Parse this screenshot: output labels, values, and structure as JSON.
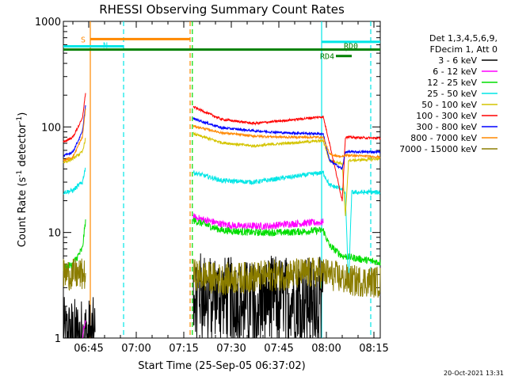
{
  "chart_data": {
    "type": "line",
    "title": "RHESSI Observing Summary Count Rates",
    "xlabel": "Start Time (25-Sep-05 06:37:02)",
    "ylabel": "Count Rate (s⁻¹ detector⁻¹)",
    "ylabel_main": "Count Rate (s",
    "ylabel_sup1": "-1",
    "ylabel_mid": " detector",
    "ylabel_sup2": "-1",
    "ylabel_end": ")",
    "yscale": "log",
    "ylim": [
      1,
      1000
    ],
    "xlim_minutes": [
      0,
      100
    ],
    "yticks": [
      {
        "value": 1,
        "label": "1"
      },
      {
        "value": 10,
        "label": "10"
      },
      {
        "value": 100,
        "label": "100"
      },
      {
        "value": 1000,
        "label": "1000"
      }
    ],
    "xticks": [
      {
        "minute": 8,
        "label": "06:45"
      },
      {
        "minute": 23,
        "label": "07:00"
      },
      {
        "minute": 38,
        "label": "07:15"
      },
      {
        "minute": 53,
        "label": "07:30"
      },
      {
        "minute": 68,
        "label": "07:45"
      },
      {
        "minute": 83,
        "label": "08:00"
      },
      {
        "minute": 98,
        "label": "08:15"
      }
    ],
    "legend": {
      "header1": "Det 1,3,4,5,6,9,",
      "header2": "FDecim 1, Att 0",
      "entries": [
        {
          "label": "3 - 6 keV",
          "color": "#000000"
        },
        {
          "label": "6 - 12 keV",
          "color": "#ff00ff"
        },
        {
          "label": "12 - 25 keV",
          "color": "#00dd00"
        },
        {
          "label": "25 - 50 keV",
          "color": "#00e6e6"
        },
        {
          "label": "50 - 100 keV",
          "color": "#d4c400"
        },
        {
          "label": "100 - 300 keV",
          "color": "#ff0000"
        },
        {
          "label": "300 - 800 keV",
          "color": "#0000ff"
        },
        {
          "label": "800 - 7000 keV",
          "color": "#ff8800"
        },
        {
          "label": "7000 - 15000 keV",
          "color": "#8b7d00"
        }
      ]
    },
    "series": [
      {
        "name": "3 - 6 keV",
        "color": "#000000",
        "noise": 0.9,
        "segments": [
          [
            0,
            1
          ],
          [
            10,
            1
          ]
        ],
        "segments2": [
          [
            41,
            2.8
          ],
          [
            60,
            2.2
          ],
          [
            65,
            2.5
          ],
          [
            82,
            2.4
          ]
        ],
        "gaps_low": true
      },
      {
        "name": "6 - 12 keV",
        "color": "#ff00ff",
        "noise": 0.08,
        "segments": [
          [
            6,
            1
          ],
          [
            7,
            1.5
          ]
        ],
        "segments2": [
          [
            41,
            14
          ],
          [
            50,
            12
          ],
          [
            55,
            11.5
          ],
          [
            65,
            11.5
          ],
          [
            70,
            12
          ],
          [
            82,
            12.5
          ]
        ]
      },
      {
        "name": "12 - 25 keV",
        "color": "#00dd00",
        "noise": 0.08,
        "segments": [
          [
            0,
            4.6
          ],
          [
            3,
            5
          ],
          [
            6,
            7
          ],
          [
            7,
            13
          ]
        ],
        "segments2": [
          [
            41,
            13
          ],
          [
            50,
            10.5
          ],
          [
            60,
            10
          ],
          [
            70,
            10
          ],
          [
            82,
            10.5
          ],
          [
            84,
            7.5
          ],
          [
            88,
            6
          ],
          [
            100,
            5.2
          ]
        ]
      },
      {
        "name": "25 - 50 keV",
        "color": "#00e6e6",
        "noise": 0.05,
        "segments": [
          [
            0,
            24
          ],
          [
            3,
            25
          ],
          [
            6,
            30
          ],
          [
            7,
            42
          ]
        ],
        "segments2": [
          [
            41,
            37
          ],
          [
            50,
            31
          ],
          [
            60,
            30
          ],
          [
            70,
            33
          ],
          [
            82,
            37
          ],
          [
            84,
            28
          ],
          [
            88,
            26
          ],
          [
            89,
            23
          ],
          [
            90,
            3
          ],
          [
            91,
            24
          ],
          [
            100,
            24
          ]
        ]
      },
      {
        "name": "50 - 100 keV",
        "color": "#d4c400",
        "noise": 0.03,
        "segments": [
          [
            0,
            46
          ],
          [
            3,
            50
          ],
          [
            6,
            58
          ],
          [
            7,
            78
          ]
        ],
        "segments2": [
          [
            41,
            86
          ],
          [
            50,
            71
          ],
          [
            60,
            66
          ],
          [
            70,
            70
          ],
          [
            82,
            74
          ],
          [
            84,
            48
          ],
          [
            88,
            45
          ],
          [
            89,
            14
          ],
          [
            90,
            48
          ],
          [
            100,
            50
          ]
        ]
      },
      {
        "name": "100 - 300 keV",
        "color": "#ff0000",
        "noise": 0.025,
        "segments": [
          [
            0,
            72
          ],
          [
            3,
            80
          ],
          [
            6,
            120
          ],
          [
            7,
            210
          ]
        ],
        "segments2": [
          [
            41,
            155
          ],
          [
            50,
            118
          ],
          [
            60,
            108
          ],
          [
            70,
            115
          ],
          [
            82,
            125
          ],
          [
            84,
            70
          ],
          [
            88,
            20
          ],
          [
            89,
            80
          ],
          [
            100,
            78
          ]
        ]
      },
      {
        "name": "300 - 800 keV",
        "color": "#0000ff",
        "noise": 0.025,
        "segments": [
          [
            0,
            53
          ],
          [
            3,
            58
          ],
          [
            6,
            90
          ],
          [
            7,
            160
          ]
        ],
        "segments2": [
          [
            41,
            120
          ],
          [
            50,
            98
          ],
          [
            60,
            92
          ],
          [
            70,
            88
          ],
          [
            82,
            86
          ],
          [
            84,
            48
          ],
          [
            88,
            40
          ],
          [
            89,
            58
          ],
          [
            100,
            58
          ]
        ]
      },
      {
        "name": "800 - 7000 keV",
        "color": "#ff8800",
        "noise": 0.025,
        "segments": [
          [
            0,
            48
          ],
          [
            3,
            52
          ],
          [
            6,
            80
          ],
          [
            7,
            150
          ]
        ],
        "segments2": [
          [
            41,
            102
          ],
          [
            50,
            88
          ],
          [
            60,
            82
          ],
          [
            70,
            80
          ],
          [
            82,
            80
          ],
          [
            84,
            55
          ],
          [
            88,
            52
          ],
          [
            89,
            54
          ],
          [
            100,
            52
          ]
        ]
      },
      {
        "name": "7000 - 15000 keV",
        "color": "#8b7d00",
        "noise": 0.35,
        "segments": [
          [
            0,
            4
          ],
          [
            3,
            4
          ],
          [
            6,
            4
          ],
          [
            7,
            4
          ]
        ],
        "segments2": [
          [
            41,
            4
          ],
          [
            50,
            3.6
          ],
          [
            60,
            3.8
          ],
          [
            70,
            4
          ],
          [
            82,
            4.2
          ],
          [
            84,
            4
          ],
          [
            90,
            3.5
          ],
          [
            100,
            3.4
          ]
        ]
      }
    ],
    "vlines": [
      {
        "minute": 8.5,
        "color": "#ff8800",
        "style": "solid"
      },
      {
        "minute": 19,
        "color": "#00e6e6",
        "style": "dashed"
      },
      {
        "minute": 40,
        "color": "#ff8800",
        "style": "dashed"
      },
      {
        "minute": 40.7,
        "color": "#00dd00",
        "style": "dashed"
      },
      {
        "minute": 81.5,
        "color": "#00e6e6",
        "style": "solid"
      },
      {
        "minute": 97,
        "color": "#00e6e6",
        "style": "dashed"
      }
    ],
    "bars": [
      {
        "label": "S",
        "color": "#ff8800",
        "x0": 8.5,
        "x1": 40,
        "y": 680
      },
      {
        "label": "N",
        "color": "#00e6e6",
        "x0": 0,
        "x1": 19,
        "y": 580
      },
      {
        "label": "",
        "color": "#00e6e6",
        "x0": 81.5,
        "x1": 100,
        "y": 640
      },
      {
        "label": "",
        "color": "#008000",
        "x0": 0,
        "x1": 100,
        "y": 540
      },
      {
        "label": "RD4",
        "color": "#008000",
        "x0": 86,
        "x1": 91,
        "y": 470
      },
      {
        "label": "RD0",
        "color": "#008000",
        "x0": 89,
        "x1": 89.5,
        "y": 540
      }
    ],
    "footer": "20-Oct-2021 13:31"
  }
}
